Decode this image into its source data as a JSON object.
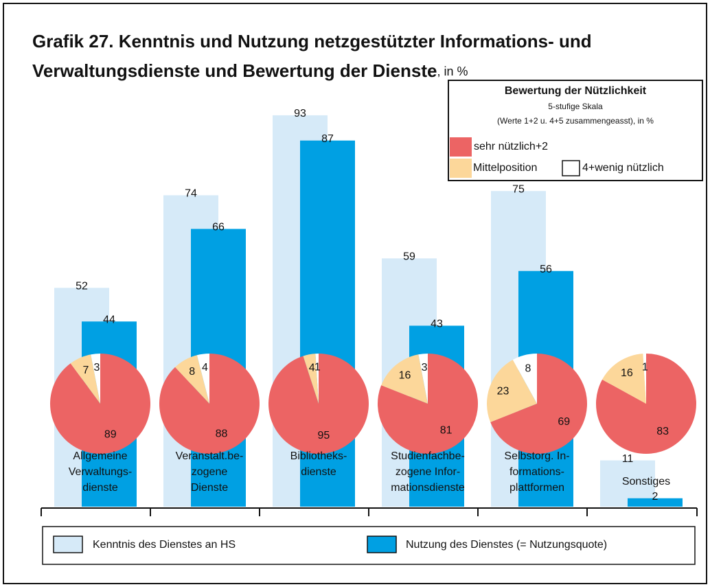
{
  "chart_data": [
    {
      "type": "bar",
      "title": [
        "Grafik 27. Kenntnis und Nutzung netzgestützter Informations- und",
        "Verwaltungsdienste und Bewertung der Dienste"
      ],
      "title_suffix": ", in %",
      "categories": [
        [
          "Allgemeine",
          "Verwaltungs-",
          "dienste"
        ],
        [
          "Veranstalt.be-",
          "zogene",
          "Dienste"
        ],
        [
          "Bibliotheks-",
          "dienste"
        ],
        [
          "Studienfachbe-",
          "zogene Infor-",
          "mationsdienste"
        ],
        [
          "Selbstorg. In-",
          "formations-",
          "plattformen"
        ],
        [
          "Sonstiges"
        ]
      ],
      "series": [
        {
          "name": "Kenntnis des Dienstes an HS",
          "color": "#d6eaf8",
          "values": [
            52,
            74,
            93,
            59,
            75,
            11
          ]
        },
        {
          "name": "Nutzung des Dienstes (= Nutzungsquote)",
          "color": "#00a0e3",
          "values": [
            44,
            66,
            87,
            43,
            56,
            2
          ]
        }
      ]
    },
    {
      "type": "pie",
      "legend_title": "Bewertung der Nützlichkeit",
      "legend_subtitle": [
        "5-stufige Skala",
        "(Werte 1+2 u. 4+5 zusammengeasst), in %"
      ],
      "series": [
        {
          "name": "sehr nützlich+2",
          "color": "#ec6464",
          "values": [
            89,
            88,
            95,
            81,
            69,
            83
          ]
        },
        {
          "name": "Mittelposition",
          "color": "#fcd79a",
          "values": [
            7,
            8,
            4,
            16,
            23,
            16
          ]
        },
        {
          "name": "4+wenig nützlich",
          "color": "#ffffff",
          "values": [
            3,
            4,
            1,
            3,
            8,
            1
          ]
        }
      ]
    }
  ]
}
